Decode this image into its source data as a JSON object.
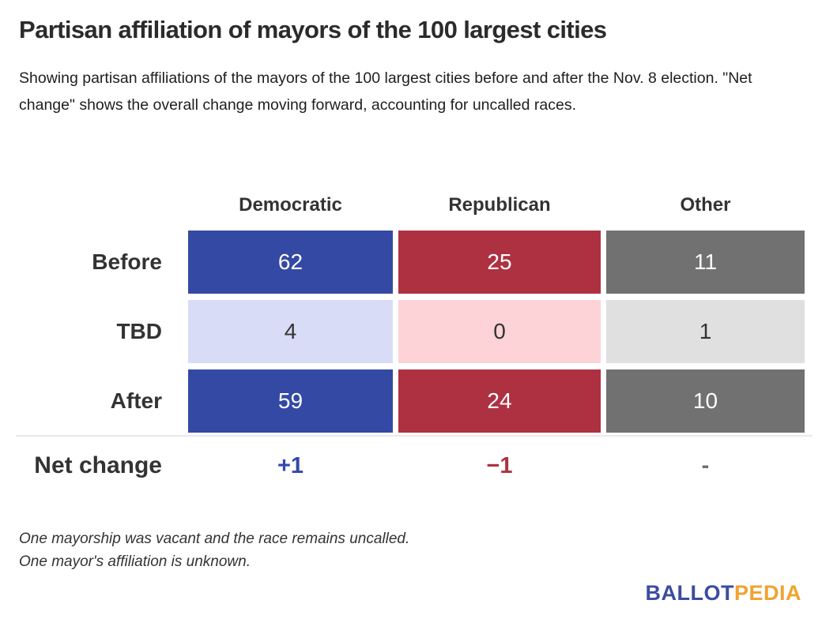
{
  "chart_data": {
    "type": "table",
    "title": "Partisan affiliation of mayors of the 100 largest cities",
    "subtitle": "Showing partisan affiliations of the mayors of the 100 largest cities before and after the Nov. 8 election. \"Net change\" shows the overall change moving forward, accounting for uncalled races.",
    "columns": [
      "Democratic",
      "Republican",
      "Other"
    ],
    "rows": [
      {
        "label": "Before",
        "values": [
          62,
          25,
          11
        ],
        "style": "solid"
      },
      {
        "label": "TBD",
        "values": [
          4,
          0,
          1
        ],
        "style": "light"
      },
      {
        "label": "After",
        "values": [
          59,
          24,
          10
        ],
        "style": "solid"
      },
      {
        "label": "Net change",
        "values": [
          "+1",
          "−1",
          "-"
        ],
        "style": "text"
      }
    ],
    "footnotes": [
      "One mayorship was vacant and the race remains uncalled.",
      "One mayor's affiliation is unknown."
    ],
    "layout_hints": {
      "legend": "none",
      "grid": "off",
      "value_position": "centered-in-cells"
    }
  },
  "colors": {
    "democratic": "#3449A4",
    "democratic_light": "#D9DCF6",
    "republican": "#AE3142",
    "republican_light": "#FDD3D7",
    "other": "#717171",
    "other_light": "#E0E0E0",
    "net_positive_blue": "#3347AE",
    "net_negative_red": "#AE3142",
    "net_neutral_gray": "#6E6E6E",
    "logo_blue": "#3C4CA0",
    "logo_gold": "#F0A32F"
  },
  "logo": {
    "part1": "BALLOT",
    "part2": "PEDIA"
  }
}
